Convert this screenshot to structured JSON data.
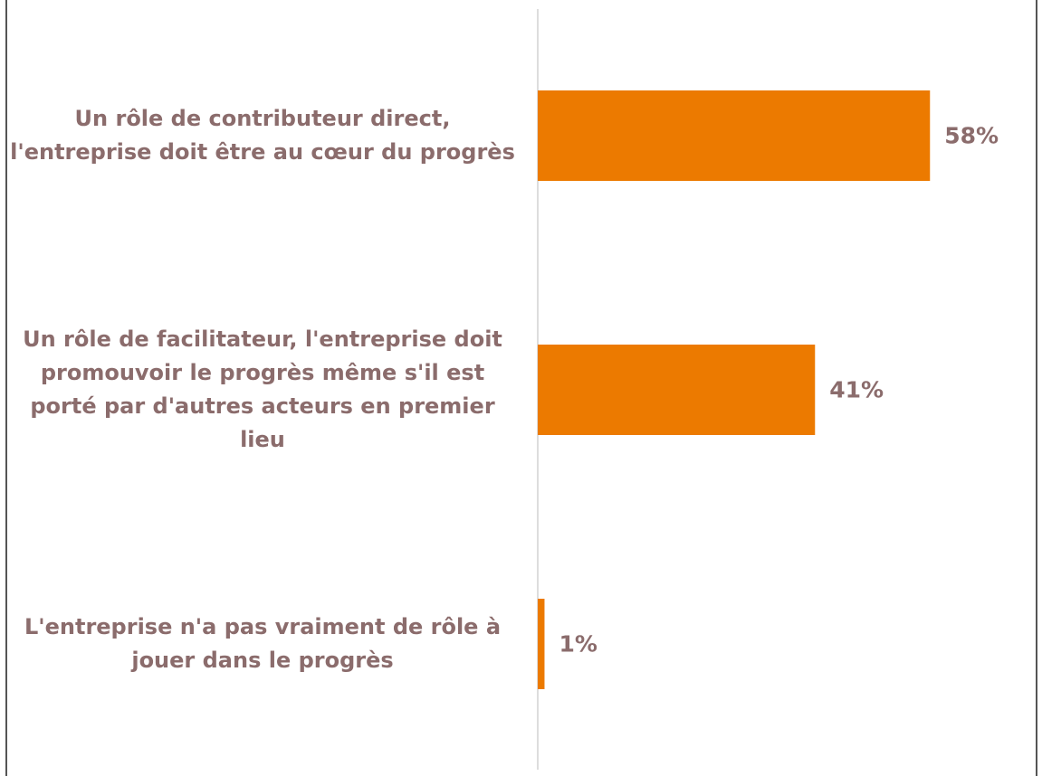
{
  "chart_data": {
    "type": "bar",
    "orientation": "horizontal",
    "categories": [
      "Un rôle de contributeur direct, l'entreprise doit être au cœur du progrès",
      "Un rôle de facilitateur, l'entreprise doit promouvoir le progrès même s'il est porté par d'autres acteurs en premier lieu",
      "L'entreprise n'a pas vraiment de rôle à jouer dans le progrès"
    ],
    "values": [
      58,
      41,
      1
    ],
    "value_labels": [
      "58%",
      "41%",
      "1%"
    ],
    "color": "#ec7a00",
    "xlim": [
      0,
      100
    ]
  }
}
